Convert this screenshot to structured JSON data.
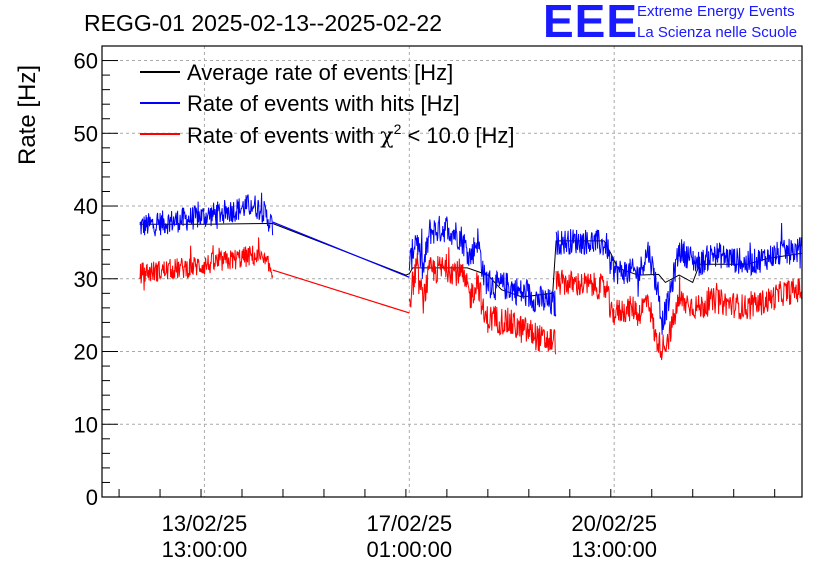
{
  "header": {
    "title": "REGG-01 2025-02-13--2025-02-22",
    "logo_mark": "EEE",
    "logo_line1": "Extreme Energy Events",
    "logo_line2": "La Scienza nelle Scuole"
  },
  "colors": {
    "average": "#000000",
    "hits": "#0000ff",
    "chi2": "#ff0000",
    "grid": "#aaaaaa",
    "logo": "#1a1aff"
  },
  "chart_data": {
    "type": "line",
    "title": "REGG-01 2025-02-13--2025-02-22",
    "ylabel": "Rate [Hz]",
    "xlabel": "",
    "x_unit": "hours since 2025-02-13 00:00",
    "xlim": [
      7,
      212
    ],
    "ylim": [
      0,
      62
    ],
    "grid": true,
    "legend_position": "top-left",
    "y_ticks": [
      0,
      10,
      20,
      30,
      40,
      50,
      60
    ],
    "x_ticks": [
      {
        "x": 37,
        "label_date": "13/02/25",
        "label_time": "13:00:00"
      },
      {
        "x": 97,
        "label_date": "17/02/25",
        "label_time": "01:00:00"
      },
      {
        "x": 157,
        "label_date": "20/02/25",
        "label_time": "13:00:00"
      }
    ],
    "series": [
      {
        "name": "Average rate of events [Hz]",
        "color": "#000000",
        "points": [
          [
            18,
            37.5
          ],
          [
            37,
            37.5
          ],
          [
            56,
            37.6
          ],
          [
            57,
            37.6
          ],
          [
            96,
            30.5
          ],
          [
            97,
            30.7
          ],
          [
            98,
            31.5
          ],
          [
            114,
            31.5
          ],
          [
            120,
            30.5
          ],
          [
            124,
            28.5
          ],
          [
            130,
            27.5
          ],
          [
            139,
            28
          ],
          [
            140,
            35.2
          ],
          [
            154,
            35.2
          ],
          [
            156,
            33.5
          ],
          [
            158,
            31.5
          ],
          [
            164,
            30.5
          ],
          [
            170,
            30.6
          ],
          [
            172,
            29.5
          ],
          [
            176,
            30.5
          ],
          [
            180,
            29.5
          ],
          [
            182,
            32
          ],
          [
            196,
            32
          ],
          [
            202,
            32.8
          ],
          [
            212,
            33.5
          ]
        ]
      },
      {
        "name": "Rate of events with hits [Hz]",
        "color": "#0000ff",
        "segments": [
          {
            "x0": 18,
            "x1": 57,
            "points": [
              [
                18,
                37.2
              ],
              [
                26,
                37.8
              ],
              [
                33,
                38.3
              ],
              [
                38,
                38.7
              ],
              [
                43,
                39.2
              ],
              [
                47,
                39.6
              ],
              [
                51,
                40.2
              ],
              [
                54,
                39.4
              ],
              [
                57,
                37.2
              ]
            ],
            "spread": 1.7
          },
          {
            "x0": 97,
            "x1": 140,
            "points": [
              [
                97,
                31.5
              ],
              [
                99,
                36
              ],
              [
                101,
                31
              ],
              [
                103,
                36.5
              ],
              [
                108,
                37
              ],
              [
                112,
                35.8
              ],
              [
                115,
                33
              ],
              [
                117,
                35.5
              ],
              [
                119,
                30
              ],
              [
                122,
                29
              ],
              [
                126,
                29
              ],
              [
                130,
                28
              ],
              [
                133,
                27.5
              ],
              [
                136,
                27
              ],
              [
                139,
                26.5
              ]
            ],
            "spread": 2.0
          },
          {
            "x0": 140,
            "x1": 212,
            "points": [
              [
                140,
                35
              ],
              [
                146,
                35.2
              ],
              [
                152,
                35
              ],
              [
                155,
                34.5
              ],
              [
                156,
                31.5
              ],
              [
                158,
                31
              ],
              [
                163,
                31
              ],
              [
                164,
                30.5
              ],
              [
                167,
                34
              ],
              [
                170,
                28
              ],
              [
                171,
                24
              ],
              [
                173,
                27
              ],
              [
                176,
                34
              ],
              [
                179,
                33
              ],
              [
                182,
                32
              ],
              [
                186,
                33.5
              ],
              [
                191,
                32.8
              ],
              [
                196,
                32
              ],
              [
                202,
                33
              ],
              [
                206,
                33.5
              ],
              [
                212,
                34
              ]
            ],
            "spread": 1.8
          }
        ],
        "bridges": [
          [
            [
              57,
              37.8
            ],
            [
              97,
              30.2
            ]
          ]
        ]
      },
      {
        "name": "Rate of events with χ² < 10.0 [Hz]",
        "legend_prefix": "Rate of events with ",
        "legend_symbol": "χ",
        "legend_superscript": "2",
        "legend_suffix": " < 10.0 [Hz]",
        "color": "#ff0000",
        "segments": [
          {
            "x0": 18,
            "x1": 57,
            "points": [
              [
                18,
                30.8
              ],
              [
                26,
                31.2
              ],
              [
                33,
                31.6
              ],
              [
                38,
                32
              ],
              [
                43,
                32.4
              ],
              [
                47,
                32.8
              ],
              [
                51,
                33.2
              ],
              [
                54,
                32.5
              ],
              [
                57,
                31
              ]
            ],
            "spread": 1.5
          },
          {
            "x0": 97,
            "x1": 140,
            "points": [
              [
                97,
                27
              ],
              [
                99,
                31.5
              ],
              [
                101,
                27
              ],
              [
                103,
                31
              ],
              [
                108,
                31.5
              ],
              [
                112,
                30.8
              ],
              [
                115,
                27.5
              ],
              [
                117,
                30
              ],
              [
                119,
                24.5
              ],
              [
                122,
                24.5
              ],
              [
                126,
                24
              ],
              [
                130,
                23
              ],
              [
                133,
                22.5
              ],
              [
                136,
                21.5
              ],
              [
                139,
                21.5
              ]
            ],
            "spread": 2.0
          },
          {
            "x0": 140,
            "x1": 212,
            "points": [
              [
                140,
                29.5
              ],
              [
                146,
                29.3
              ],
              [
                152,
                29
              ],
              [
                155,
                28.5
              ],
              [
                156,
                25
              ],
              [
                158,
                25.5
              ],
              [
                163,
                26
              ],
              [
                164,
                25
              ],
              [
                167,
                27.5
              ],
              [
                169,
                22
              ],
              [
                171,
                20.5
              ],
              [
                173,
                22
              ],
              [
                176,
                27
              ],
              [
                179,
                26.5
              ],
              [
                182,
                26
              ],
              [
                186,
                27
              ],
              [
                191,
                26.5
              ],
              [
                196,
                26
              ],
              [
                202,
                27
              ],
              [
                206,
                28
              ],
              [
                212,
                28.5
              ]
            ],
            "spread": 1.8
          }
        ],
        "bridges": [
          [
            [
              57,
              31.2
            ],
            [
              97,
              25.3
            ]
          ]
        ]
      }
    ]
  }
}
